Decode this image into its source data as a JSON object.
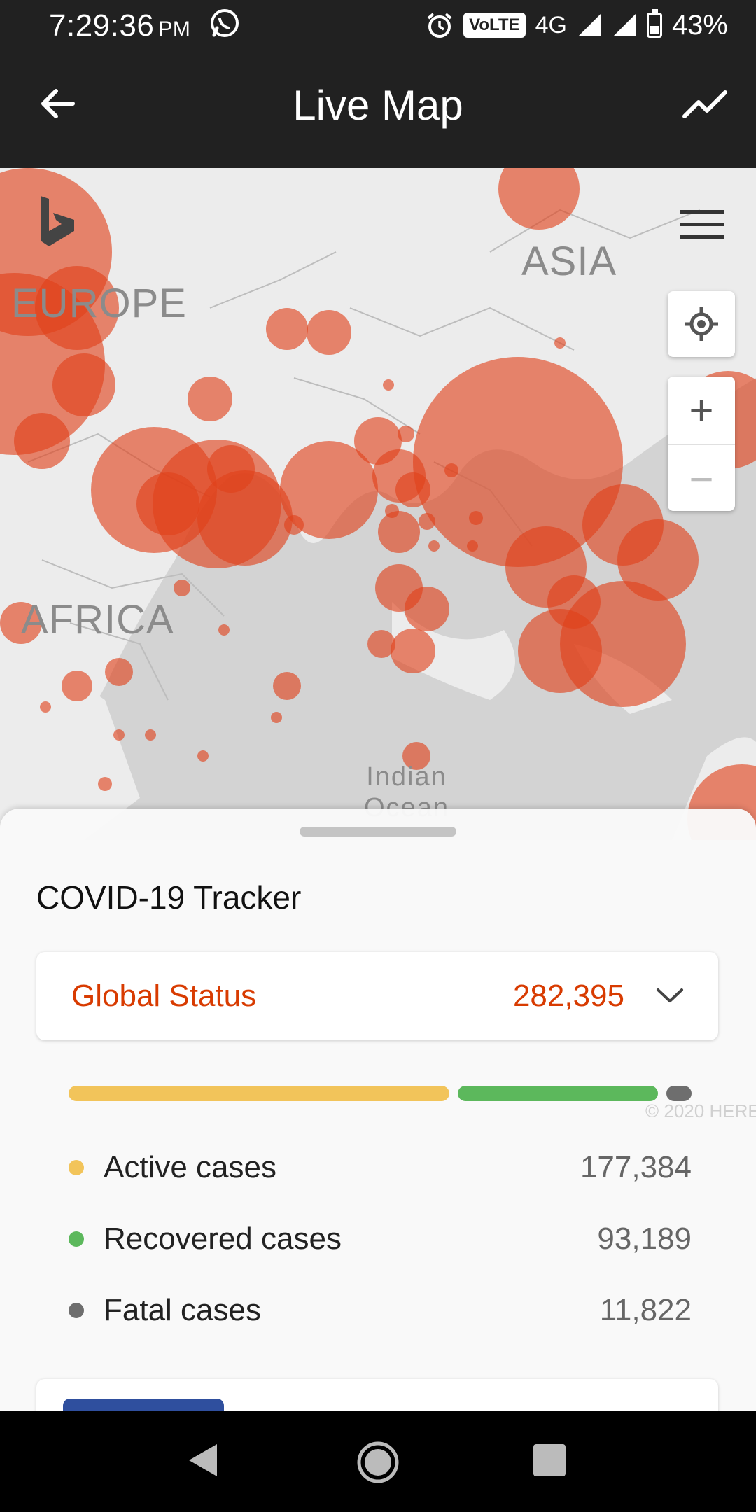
{
  "status_bar": {
    "time": "7:29:36",
    "ampm": "PM",
    "volte": "VoLTE",
    "network": "4G",
    "battery": "43%"
  },
  "app_bar": {
    "title": "Live Map",
    "back_icon": "arrow-back-icon",
    "trend_icon": "trending-icon"
  },
  "map": {
    "labels": {
      "europe": "EUROPE",
      "asia": "ASIA",
      "africa": "AFRICA",
      "ocean_line1": "Indian",
      "ocean_line2": "Ocean"
    },
    "copyright": "© 2020 HERE",
    "bubble_color": "#e0401a"
  },
  "tracker": {
    "title": "COVID-19 Tracker",
    "global_label": "Global Status",
    "global_total": "282,395",
    "rows": [
      {
        "name": "Active cases",
        "value": "177,384",
        "color": "#f2c45a"
      },
      {
        "name": "Recovered cases",
        "value": "93,189",
        "color": "#5cb85c"
      },
      {
        "name": "Fatal cases",
        "value": "11,822",
        "color": "#6e6e6e"
      }
    ]
  }
}
